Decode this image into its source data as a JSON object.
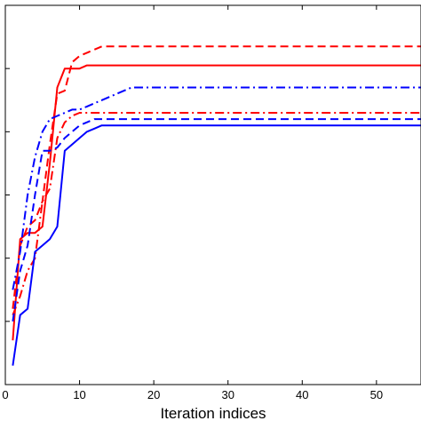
{
  "chart_data": {
    "type": "line",
    "title": "",
    "xlabel": "Iteration indices",
    "ylabel": "",
    "xlim": [
      0,
      56
    ],
    "ylim": [
      0,
      6
    ],
    "xticks": [
      0,
      10,
      20,
      30,
      40,
      50
    ],
    "yticks": [
      0,
      1,
      2,
      3,
      4,
      5,
      6
    ],
    "grid": false,
    "series": [
      {
        "color": "#ff0000",
        "linestyle": "solid",
        "x": [
          1,
          2,
          3,
          4,
          5,
          6,
          7,
          8,
          9,
          10,
          11,
          12,
          13,
          20,
          56
        ],
        "y": [
          0.7,
          2.3,
          2.4,
          2.4,
          2.5,
          3.5,
          4.7,
          5.0,
          5.0,
          5.0,
          5.05,
          5.05,
          5.05,
          5.05,
          5.05
        ]
      },
      {
        "color": "#ff0000",
        "linestyle": "dashed",
        "x": [
          1,
          2,
          3,
          4,
          5,
          6,
          7,
          8,
          9,
          10,
          11,
          12,
          13,
          56
        ],
        "y": [
          1.2,
          2.2,
          2.5,
          2.6,
          2.9,
          3.8,
          4.6,
          4.65,
          5.1,
          5.2,
          5.25,
          5.3,
          5.35,
          5.35
        ]
      },
      {
        "color": "#ff0000",
        "linestyle": "dashdot",
        "x": [
          1,
          2,
          3,
          4,
          5,
          6,
          7,
          8,
          9,
          10,
          11,
          56
        ],
        "y": [
          1.1,
          1.4,
          1.8,
          2.0,
          2.9,
          3.1,
          3.9,
          4.15,
          4.25,
          4.3,
          4.3,
          4.3
        ]
      },
      {
        "color": "#0000ff",
        "linestyle": "solid",
        "x": [
          1,
          2,
          3,
          4,
          5,
          6,
          7,
          8,
          9,
          10,
          11,
          12,
          13,
          56
        ],
        "y": [
          0.3,
          1.1,
          1.2,
          2.1,
          2.2,
          2.3,
          2.5,
          3.7,
          3.8,
          3.9,
          4.0,
          4.05,
          4.1,
          4.1
        ]
      },
      {
        "color": "#0000ff",
        "linestyle": "dashed",
        "x": [
          1,
          2,
          3,
          4,
          5,
          6,
          7,
          8,
          9,
          10,
          11,
          12,
          13,
          56
        ],
        "y": [
          1.0,
          1.8,
          2.2,
          3.0,
          3.7,
          3.7,
          3.75,
          3.9,
          4.0,
          4.1,
          4.15,
          4.2,
          4.2,
          4.2
        ]
      },
      {
        "color": "#0000ff",
        "linestyle": "dashdot",
        "x": [
          1,
          2,
          3,
          4,
          5,
          6,
          7,
          8,
          9,
          10,
          11,
          12,
          13,
          14,
          15,
          16,
          17,
          56
        ],
        "y": [
          1.5,
          2.1,
          3.0,
          3.6,
          4.0,
          4.2,
          4.25,
          4.3,
          4.35,
          4.35,
          4.4,
          4.45,
          4.5,
          4.55,
          4.6,
          4.65,
          4.7,
          4.7
        ]
      }
    ]
  }
}
